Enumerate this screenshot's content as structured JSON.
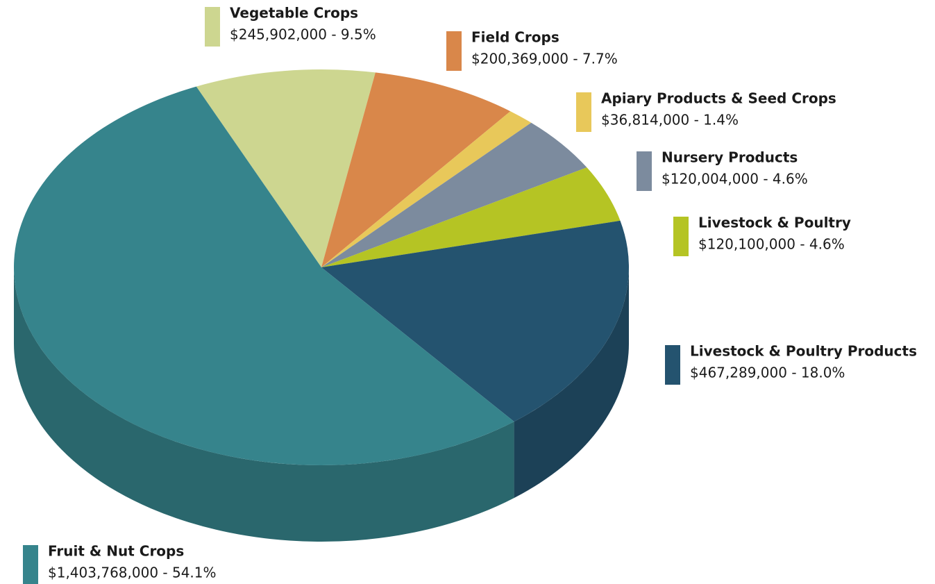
{
  "chart_data": {
    "type": "pie3d",
    "categories": [
      "Vegetable Crops",
      "Field Crops",
      "Apiary Products & Seed Crops",
      "Nursery Products",
      "Livestock & Poultry",
      "Livestock & Poultry Products",
      "Fruit & Nut Crops"
    ],
    "values": [
      245902000,
      200369000,
      36814000,
      120004000,
      120100000,
      467289000,
      1403768000
    ],
    "value_labels": [
      "$245,902,000 - 9.5%",
      "$200,369,000 - 7.7%",
      "$36,814,000 - 1.4%",
      "$120,004,000 - 4.6%",
      "$120,100,000 - 4.6%",
      "$467,289,000 - 18.0%",
      "$1,403,768,000 - 54.1%"
    ],
    "colors": [
      "#cdd690",
      "#d9874a",
      "#e8c85a",
      "#7c8b9e",
      "#b5c424",
      "#24536f",
      "#36848c"
    ]
  }
}
